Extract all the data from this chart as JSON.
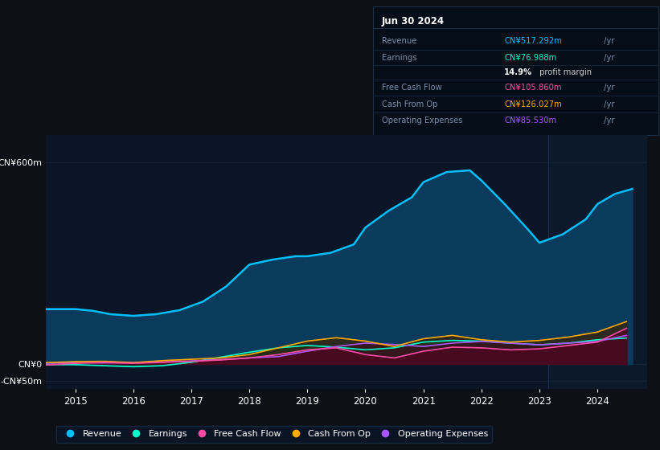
{
  "bg_color": "#0d1117",
  "plot_bg_color": "#0a1628",
  "xticks": [
    2015,
    2016,
    2017,
    2018,
    2019,
    2020,
    2021,
    2022,
    2023,
    2024
  ],
  "ytick_labels": [
    "CN¥600m",
    "CN¥0",
    "-CN¥50m"
  ],
  "ytick_vals": [
    600,
    0,
    -50
  ],
  "xlim": [
    2014.5,
    2024.85
  ],
  "ylim": [
    -75,
    680
  ],
  "info_box": {
    "title": "Jun 30 2024",
    "rows": [
      {
        "label": "Revenue",
        "value": "CN¥517.292m",
        "suffix": " /yr",
        "value_color": "#00bfff"
      },
      {
        "label": "Earnings",
        "value": "CN¥76.988m",
        "suffix": " /yr",
        "value_color": "#00ffcc"
      },
      {
        "label": "",
        "value": "14.9%",
        "suffix": " profit margin",
        "value_color": "#ffffff",
        "suffix_color": "#cccccc"
      },
      {
        "label": "Free Cash Flow",
        "value": "CN¥105.860m",
        "suffix": " /yr",
        "value_color": "#ff4da6"
      },
      {
        "label": "Cash From Op",
        "value": "CN¥126.027m",
        "suffix": " /yr",
        "value_color": "#ffaa00"
      },
      {
        "label": "Operating Expenses",
        "value": "CN¥85.530m",
        "suffix": " /yr",
        "value_color": "#aa55ff"
      }
    ]
  },
  "series": {
    "revenue": {
      "color": "#00bfff",
      "fill_color": "#0a3a5c",
      "label": "Revenue",
      "x": [
        2014.5,
        2015.0,
        2015.3,
        2015.6,
        2016.0,
        2016.4,
        2016.8,
        2017.2,
        2017.6,
        2018.0,
        2018.4,
        2018.8,
        2019.0,
        2019.4,
        2019.8,
        2020.0,
        2020.4,
        2020.8,
        2021.0,
        2021.4,
        2021.8,
        2022.0,
        2022.4,
        2022.8,
        2023.0,
        2023.4,
        2023.8,
        2024.0,
        2024.3,
        2024.6
      ],
      "y": [
        163,
        163,
        158,
        148,
        143,
        148,
        160,
        185,
        230,
        295,
        310,
        320,
        320,
        330,
        355,
        405,
        455,
        495,
        540,
        570,
        575,
        545,
        475,
        400,
        360,
        385,
        430,
        475,
        505,
        520
      ]
    },
    "earnings": {
      "color": "#00ffcc",
      "fill_color": "#003322",
      "label": "Earnings",
      "x": [
        2014.5,
        2015.0,
        2015.5,
        2016.0,
        2016.5,
        2017.0,
        2017.5,
        2018.0,
        2018.5,
        2019.0,
        2019.5,
        2020.0,
        2020.5,
        2021.0,
        2021.5,
        2022.0,
        2022.5,
        2023.0,
        2023.5,
        2024.0,
        2024.5
      ],
      "y": [
        -2,
        -2,
        -5,
        -8,
        -5,
        5,
        20,
        35,
        48,
        55,
        50,
        42,
        48,
        65,
        70,
        68,
        62,
        57,
        62,
        72,
        77
      ]
    },
    "free_cash_flow": {
      "color": "#ff4da6",
      "fill_color": "#4a0022",
      "label": "Free Cash Flow",
      "x": [
        2014.5,
        2015.0,
        2015.5,
        2016.0,
        2016.5,
        2017.0,
        2017.5,
        2018.0,
        2018.5,
        2019.0,
        2019.5,
        2020.0,
        2020.5,
        2021.0,
        2021.5,
        2022.0,
        2022.5,
        2023.0,
        2023.5,
        2024.0,
        2024.5
      ],
      "y": [
        -3,
        2,
        5,
        2,
        5,
        8,
        12,
        18,
        28,
        42,
        48,
        28,
        18,
        38,
        50,
        48,
        42,
        45,
        55,
        65,
        106
      ]
    },
    "cash_from_op": {
      "color": "#ffaa00",
      "fill_color": "#3d2200",
      "label": "Cash From Op",
      "x": [
        2014.5,
        2015.0,
        2015.5,
        2016.0,
        2016.5,
        2017.0,
        2017.5,
        2018.0,
        2018.5,
        2019.0,
        2019.5,
        2020.0,
        2020.5,
        2021.0,
        2021.5,
        2022.0,
        2022.5,
        2023.0,
        2023.5,
        2024.0,
        2024.5
      ],
      "y": [
        4,
        7,
        8,
        4,
        10,
        14,
        18,
        28,
        48,
        68,
        78,
        68,
        52,
        75,
        85,
        72,
        65,
        70,
        80,
        95,
        126
      ]
    },
    "operating_expenses": {
      "color": "#aa55ff",
      "fill_color": "#250044",
      "label": "Operating Expenses",
      "x": [
        2014.5,
        2015.0,
        2015.5,
        2016.0,
        2016.5,
        2017.0,
        2017.5,
        2018.0,
        2018.5,
        2019.0,
        2019.5,
        2020.0,
        2020.5,
        2021.0,
        2021.5,
        2022.0,
        2022.5,
        2023.0,
        2023.5,
        2024.0,
        2024.5
      ],
      "y": [
        2,
        4,
        3,
        4,
        6,
        9,
        13,
        18,
        22,
        38,
        52,
        62,
        58,
        52,
        62,
        67,
        62,
        57,
        62,
        67,
        85
      ]
    }
  },
  "legend": [
    {
      "label": "Revenue",
      "color": "#00bfff"
    },
    {
      "label": "Earnings",
      "color": "#00ffcc"
    },
    {
      "label": "Free Cash Flow",
      "color": "#ff4da6"
    },
    {
      "label": "Cash From Op",
      "color": "#ffaa00"
    },
    {
      "label": "Operating Expenses",
      "color": "#aa55ff"
    }
  ],
  "divider_x": 2023.15
}
